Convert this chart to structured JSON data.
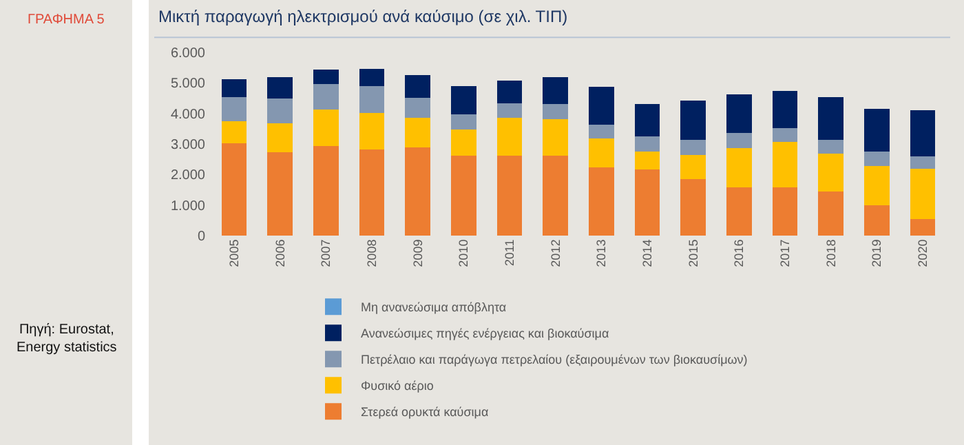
{
  "chart_data": {
    "type": "bar",
    "title": "Μικτή παραγωγή ηλεκτρισμού ανά καύσιμο (σε χιλ. ΤΙΠ)",
    "annotations": [
      "ΓΡΑΦΗΜΑ 5",
      "Πηγή: Eurostat,\nEnergy statistics"
    ],
    "categories": [
      "2005",
      "2006",
      "2007",
      "2008",
      "2009",
      "2010",
      "2011",
      "2012",
      "2013",
      "2014",
      "2015",
      "2016",
      "2017",
      "2018",
      "2019",
      "2020"
    ],
    "stacked": true,
    "series": [
      {
        "name": "Στερεά ορυκτά καύσιμα",
        "color": "#ed7d31",
        "values": [
          3020,
          2730,
          2940,
          2830,
          2880,
          2610,
          2610,
          2620,
          2230,
          2170,
          1850,
          1570,
          1570,
          1440,
          1000,
          540
        ]
      },
      {
        "name": "Φυσικό αέριο",
        "color": "#ffc000",
        "values": [
          720,
          940,
          1190,
          1190,
          980,
          870,
          1240,
          1200,
          940,
          590,
          800,
          1300,
          1490,
          1240,
          1270,
          1640
        ]
      },
      {
        "name": "Πετρέλαιο και παράγωγα πετρελαίου (εξαιρουμένων των βιοκαυσίμων)",
        "color": "#8497b0",
        "values": [
          790,
          810,
          840,
          870,
          660,
          500,
          490,
          490,
          470,
          480,
          480,
          500,
          470,
          450,
          480,
          420
        ]
      },
      {
        "name": "Ανανεώσιμες πηγές ενέργειας και βιοκαύσιμα",
        "color": "#002060",
        "values": [
          590,
          710,
          460,
          560,
          730,
          920,
          730,
          880,
          1240,
          1060,
          1290,
          1260,
          1200,
          1400,
          1400,
          1510
        ]
      },
      {
        "name": "Μη ανανεώσιμα απόβλητα",
        "color": "#5b9bd5",
        "values": [
          null,
          null,
          null,
          null,
          null,
          null,
          null,
          null,
          null,
          null,
          null,
          null,
          null,
          null,
          null,
          null
        ]
      }
    ],
    "ylim": [
      0,
      6000
    ],
    "yticks": [
      {
        "value": 0,
        "label": "0"
      },
      {
        "value": 1000,
        "label": "1.000"
      },
      {
        "value": 2000,
        "label": "2.000"
      },
      {
        "value": 3000,
        "label": "3.000"
      },
      {
        "value": 4000,
        "label": "4.000"
      },
      {
        "value": 5000,
        "label": "5.000"
      },
      {
        "value": 6000,
        "label": "6.000"
      }
    ],
    "grid": false,
    "legend": "bottom"
  }
}
